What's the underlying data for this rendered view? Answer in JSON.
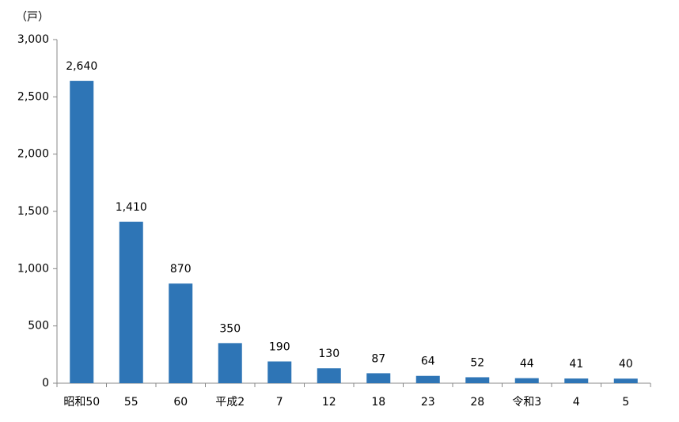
{
  "chart_data": {
    "type": "bar",
    "y_label": "（戸）",
    "categories": [
      "昭和50",
      "55",
      "60",
      "平成2",
      "7",
      "12",
      "18",
      "23",
      "28",
      "令和3",
      "4",
      "5"
    ],
    "values": [
      2640,
      1410,
      870,
      350,
      190,
      130,
      87,
      64,
      52,
      44,
      41,
      40
    ],
    "value_labels": [
      "2,640",
      "1,410",
      "870",
      "350",
      "190",
      "130",
      "87",
      "64",
      "52",
      "44",
      "41",
      "40"
    ],
    "color": "#2e75b6",
    "ylim": [
      0,
      3000
    ],
    "yticks": [
      0,
      500,
      {
        "value": 1000,
        "label": "1,000"
      },
      {
        "value": 1500,
        "label": "1,500"
      },
      {
        "value": 2000,
        "label": "2,000"
      },
      {
        "value": 2500,
        "label": "2,500"
      },
      {
        "value": 3000,
        "label": "3,000"
      }
    ]
  }
}
